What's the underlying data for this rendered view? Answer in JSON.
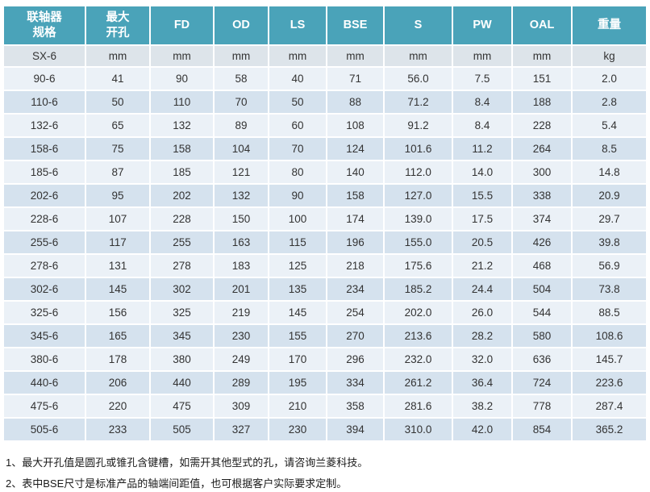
{
  "colors": {
    "header_bg": "#4AA3B9",
    "header_text": "#FFFFFF",
    "row_light": "#EBF1F7",
    "row_dark": "#D5E2EE",
    "units_row_bg": "#DDE4EA",
    "cell_text": "#333333",
    "note_text": "#1A1A1A",
    "grid_gap": "#FFFFFF"
  },
  "table": {
    "headers": [
      "联轴器\n规格",
      "最大\n开孔",
      "FD",
      "OD",
      "LS",
      "BSE",
      "S",
      "PW",
      "OAL",
      "重量"
    ],
    "units_row": [
      "SX-6",
      "mm",
      "mm",
      "mm",
      "mm",
      "mm",
      "mm",
      "mm",
      "mm",
      "kg"
    ],
    "rows": [
      [
        "90-6",
        "41",
        "90",
        "58",
        "40",
        "71",
        "56.0",
        "7.5",
        "151",
        "2.0"
      ],
      [
        "110-6",
        "50",
        "110",
        "70",
        "50",
        "88",
        "71.2",
        "8.4",
        "188",
        "2.8"
      ],
      [
        "132-6",
        "65",
        "132",
        "89",
        "60",
        "108",
        "91.2",
        "8.4",
        "228",
        "5.4"
      ],
      [
        "158-6",
        "75",
        "158",
        "104",
        "70",
        "124",
        "101.6",
        "11.2",
        "264",
        "8.5"
      ],
      [
        "185-6",
        "87",
        "185",
        "121",
        "80",
        "140",
        "112.0",
        "14.0",
        "300",
        "14.8"
      ],
      [
        "202-6",
        "95",
        "202",
        "132",
        "90",
        "158",
        "127.0",
        "15.5",
        "338",
        "20.9"
      ],
      [
        "228-6",
        "107",
        "228",
        "150",
        "100",
        "174",
        "139.0",
        "17.5",
        "374",
        "29.7"
      ],
      [
        "255-6",
        "117",
        "255",
        "163",
        "115",
        "196",
        "155.0",
        "20.5",
        "426",
        "39.8"
      ],
      [
        "278-6",
        "131",
        "278",
        "183",
        "125",
        "218",
        "175.6",
        "21.2",
        "468",
        "56.9"
      ],
      [
        "302-6",
        "145",
        "302",
        "201",
        "135",
        "234",
        "185.2",
        "24.4",
        "504",
        "73.8"
      ],
      [
        "325-6",
        "156",
        "325",
        "219",
        "145",
        "254",
        "202.0",
        "26.0",
        "544",
        "88.5"
      ],
      [
        "345-6",
        "165",
        "345",
        "230",
        "155",
        "270",
        "213.6",
        "28.2",
        "580",
        "108.6"
      ],
      [
        "380-6",
        "178",
        "380",
        "249",
        "170",
        "296",
        "232.0",
        "32.0",
        "636",
        "145.7"
      ],
      [
        "440-6",
        "206",
        "440",
        "289",
        "195",
        "334",
        "261.2",
        "36.4",
        "724",
        "223.6"
      ],
      [
        "475-6",
        "220",
        "475",
        "309",
        "210",
        "358",
        "281.6",
        "38.2",
        "778",
        "287.4"
      ],
      [
        "505-6",
        "233",
        "505",
        "327",
        "230",
        "394",
        "310.0",
        "42.0",
        "854",
        "365.2"
      ]
    ]
  },
  "notes": [
    "1、最大开孔值是圆孔或锥孔含键槽，如需开其他型式的孔，请咨询兰菱科技。",
    "2、表中BSE尺寸是标准产品的轴端间距值，也可根据客户实际要求定制。"
  ]
}
